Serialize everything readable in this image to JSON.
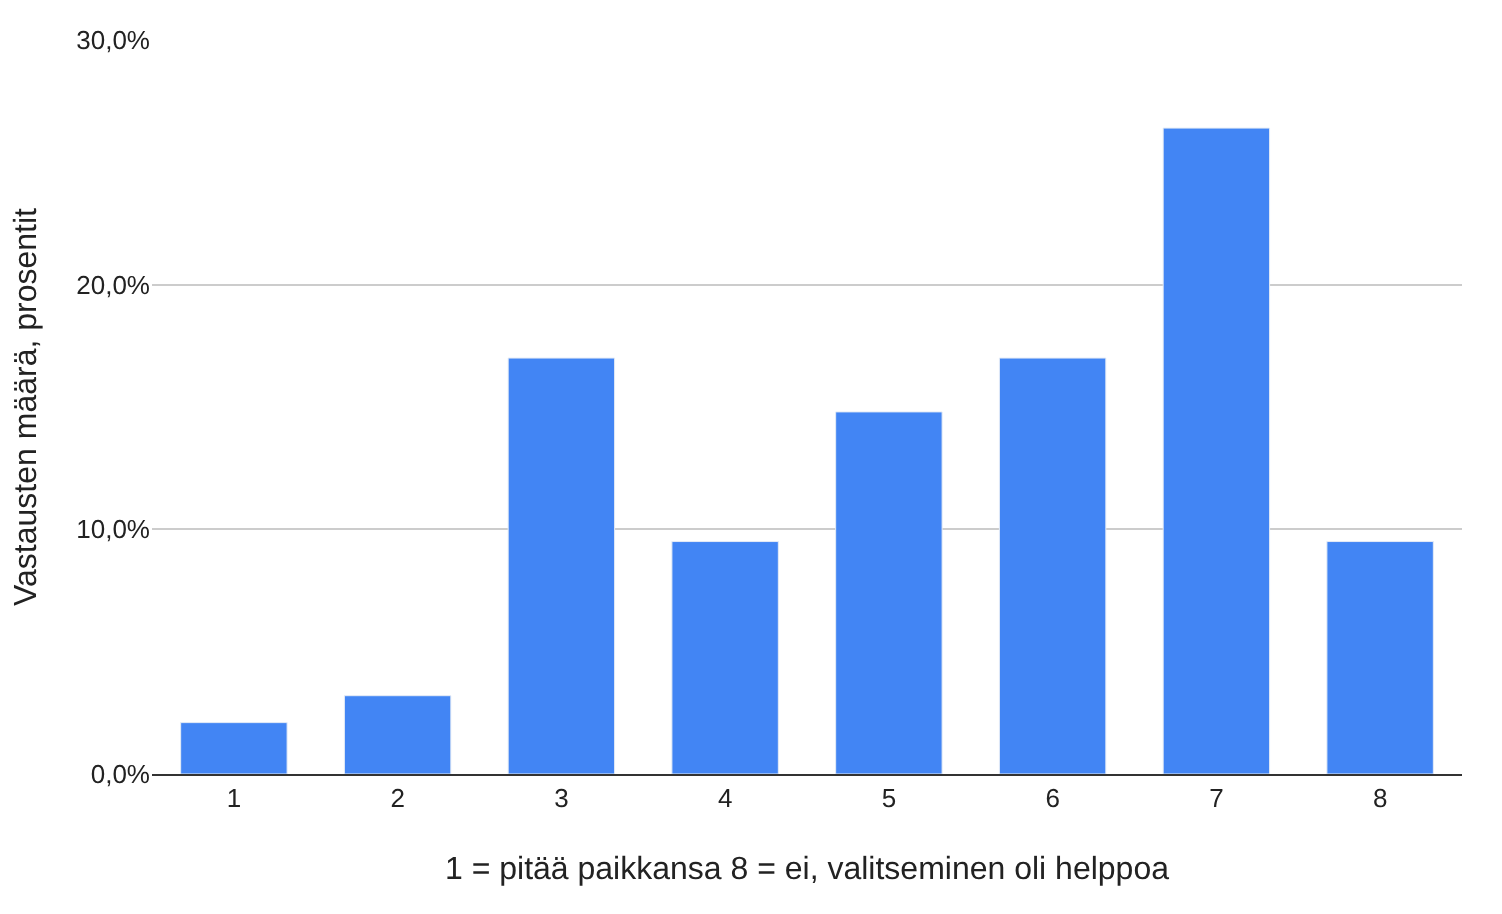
{
  "chart_data": {
    "type": "bar",
    "xlabel": "1 = pitää paikkansa 8 = ei, valitseminen oli helppoa",
    "ylabel": "Vastausten määrä, prosentit",
    "categories": [
      "1",
      "2",
      "3",
      "4",
      "5",
      "6",
      "7",
      "8"
    ],
    "values": [
      2.1,
      3.2,
      17.0,
      9.5,
      14.8,
      17.0,
      26.4,
      9.5
    ],
    "color": "#4285f4",
    "ylim": [
      0,
      30
    ],
    "yticks": [
      {
        "value": 0,
        "label": "0,0%"
      },
      {
        "value": 10,
        "label": "10,0%"
      },
      {
        "value": 20,
        "label": "20,0%"
      },
      {
        "value": 30,
        "label": "30,0%"
      }
    ],
    "grid": "y"
  }
}
